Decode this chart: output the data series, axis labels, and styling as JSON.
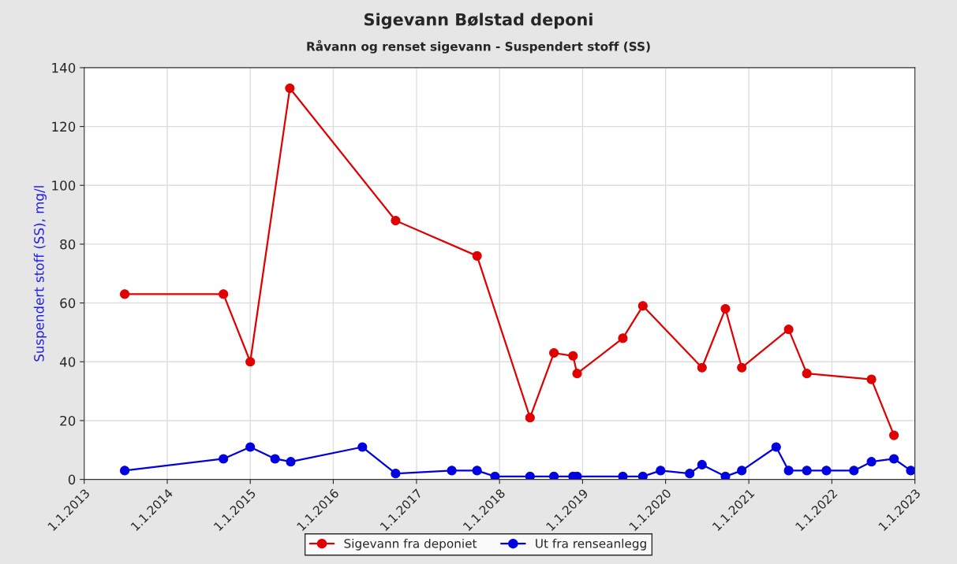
{
  "chart_data": {
    "type": "line",
    "title": "Sigevann Bølstad deponi",
    "subtitle": "Råvann og renset sigevann - Suspendert stoff (SS)",
    "ylabel": "Suspendert stoff (SS), mg/l",
    "series": [
      {
        "name": "Sigevann fra deponiet",
        "color": "#e00000",
        "x": [
          "2013-06-28",
          "2014-09-05",
          "2015-01-01",
          "2015-06-24",
          "2016-10-01",
          "2017-09-24",
          "2018-05-15",
          "2018-08-28",
          "2018-11-20",
          "2018-12-08",
          "2019-06-27",
          "2019-09-23",
          "2020-06-09",
          "2020-09-20",
          "2020-12-01",
          "2021-06-25",
          "2021-09-13",
          "2022-06-24",
          "2022-10-01"
        ],
        "values": [
          63,
          63,
          40,
          133,
          88,
          76,
          21,
          43,
          42,
          36,
          48,
          59,
          38,
          58,
          38,
          51,
          36,
          34,
          15
        ]
      },
      {
        "name": "Ut fra renseanlegg",
        "color": "#0000e0",
        "x": [
          "2013-06-28",
          "2014-09-05",
          "2015-01-01",
          "2015-04-20",
          "2015-06-28",
          "2016-05-08",
          "2016-10-01",
          "2017-06-05",
          "2017-09-24",
          "2017-12-12",
          "2018-05-15",
          "2018-08-28",
          "2018-11-20",
          "2018-12-08",
          "2019-06-27",
          "2019-09-23",
          "2019-12-10",
          "2020-04-16",
          "2020-06-09",
          "2020-09-20",
          "2020-12-01",
          "2021-05-01",
          "2021-06-25",
          "2021-09-13",
          "2021-12-08",
          "2022-04-08",
          "2022-06-24",
          "2022-10-01",
          "2022-12-14"
        ],
        "values": [
          3,
          7,
          11,
          7,
          6,
          11,
          2,
          3,
          3,
          1,
          1,
          1,
          1,
          1,
          1,
          1,
          3,
          2,
          5,
          1,
          3,
          11,
          3,
          3,
          3,
          3,
          6,
          7,
          3
        ]
      }
    ],
    "xlim": [
      "2013-01-01",
      "2023-01-01"
    ],
    "xticks": [
      {
        "value": "2013-01-01",
        "label": "1.1.2013"
      },
      {
        "value": "2014-01-01",
        "label": "1.1.2014"
      },
      {
        "value": "2015-01-01",
        "label": "1.1.2015"
      },
      {
        "value": "2016-01-01",
        "label": "1.1.2016"
      },
      {
        "value": "2017-01-01",
        "label": "1.1.2017"
      },
      {
        "value": "2018-01-01",
        "label": "1.1.2018"
      },
      {
        "value": "2019-01-01",
        "label": "1.1.2019"
      },
      {
        "value": "2020-01-01",
        "label": "1.1.2020"
      },
      {
        "value": "2021-01-01",
        "label": "1.1.2021"
      },
      {
        "value": "2022-01-01",
        "label": "1.1.2022"
      },
      {
        "value": "2023-01-01",
        "label": "1.1.2023"
      }
    ],
    "ylim": [
      0,
      140
    ],
    "yticks": [
      0,
      20,
      40,
      60,
      80,
      100,
      120,
      140
    ],
    "grid": true,
    "legend": "bottom",
    "marker": "circle",
    "line_style": "solid"
  }
}
